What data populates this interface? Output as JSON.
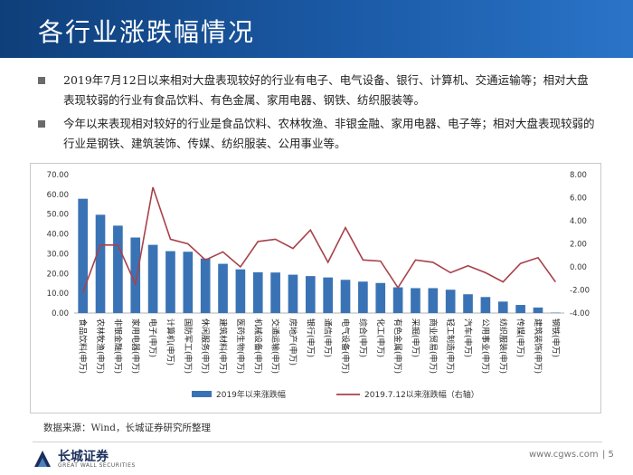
{
  "header": {
    "title": "各行业涨跌幅情况"
  },
  "bullets": [
    "2019年7月12日以来相对大盘表现较好的行业有电子、电气设备、银行、计算机、交通运输等；相对大盘表现较弱的行业有食品饮料、有色金属、家用电器、钢铁、纺织服装等。",
    "今年以来表现相对较好的行业是食品饮料、农林牧渔、非银金融、家用电器、电子等；相对大盘表现较弱的行业是钢铁、建筑装饰、传媒、纺织服装、公用事业等。"
  ],
  "source": "数据来源：Wind，长城证券研究所整理",
  "footer": {
    "logo_cn": "长城证券",
    "logo_en": "GREAT WALL SECURITIES",
    "site": "www.cgws.com",
    "page": "| 5"
  },
  "colors": {
    "header": "#1b5aa6",
    "bar": "#3a73b5",
    "line": "#a8424a"
  },
  "chart_data": {
    "type": "bar",
    "categories": [
      "食品饮料(申万)",
      "农林牧渔(申万)",
      "非银金融(申万)",
      "家用电器(申万)",
      "电子(申万)",
      "计算机(申万)",
      "国防军工(申万)",
      "休闲服务(申万)",
      "建筑材料(申万)",
      "医药生物(申万)",
      "机械设备(申万)",
      "交通运输(申万)",
      "房地产(申万)",
      "银行(申万)",
      "通信(申万)",
      "电气设备(申万)",
      "综合(申万)",
      "化工(申万)",
      "有色金属(申万)",
      "采掘(申万)",
      "商业贸易(申万)",
      "轻工制造(申万)",
      "汽车(申万)",
      "公用事业(申万)",
      "纺织服装(申万)",
      "传媒(申万)",
      "建筑装饰(申万)",
      "钢铁(申万)"
    ],
    "series": [
      {
        "name": "2019年以来涨跌幅",
        "axis": "left",
        "type": "bar",
        "values": [
          57.8,
          49.7,
          44.2,
          38.2,
          34.5,
          31.3,
          31.0,
          27.6,
          24.9,
          22.1,
          20.6,
          20.5,
          19.4,
          18.7,
          18.0,
          16.8,
          15.9,
          15.2,
          13.0,
          12.6,
          12.6,
          11.8,
          9.5,
          8.1,
          5.8,
          4.1,
          2.8,
          0.2
        ]
      },
      {
        "name": "2019.7.12以来涨跌幅（右轴）",
        "axis": "right",
        "type": "line",
        "values": [
          -2.2,
          1.9,
          1.9,
          -1.5,
          6.9,
          2.4,
          2.0,
          0.6,
          1.3,
          0.0,
          2.2,
          2.4,
          1.6,
          3.2,
          0.4,
          3.4,
          0.6,
          0.5,
          -1.8,
          0.6,
          0.4,
          -0.5,
          0.1,
          -0.5,
          -1.3,
          0.3,
          0.8,
          -1.3
        ]
      }
    ],
    "left_axis": {
      "min": 0,
      "max": 70,
      "step": 10,
      "format": "0.00"
    },
    "right_axis": {
      "min": -4,
      "max": 8,
      "step": 2,
      "format": "0.00"
    },
    "legend": [
      "2019年以来涨跌幅",
      "2019.7.12以来涨跌幅（右轴）"
    ],
    "legend_position": "bottom"
  }
}
